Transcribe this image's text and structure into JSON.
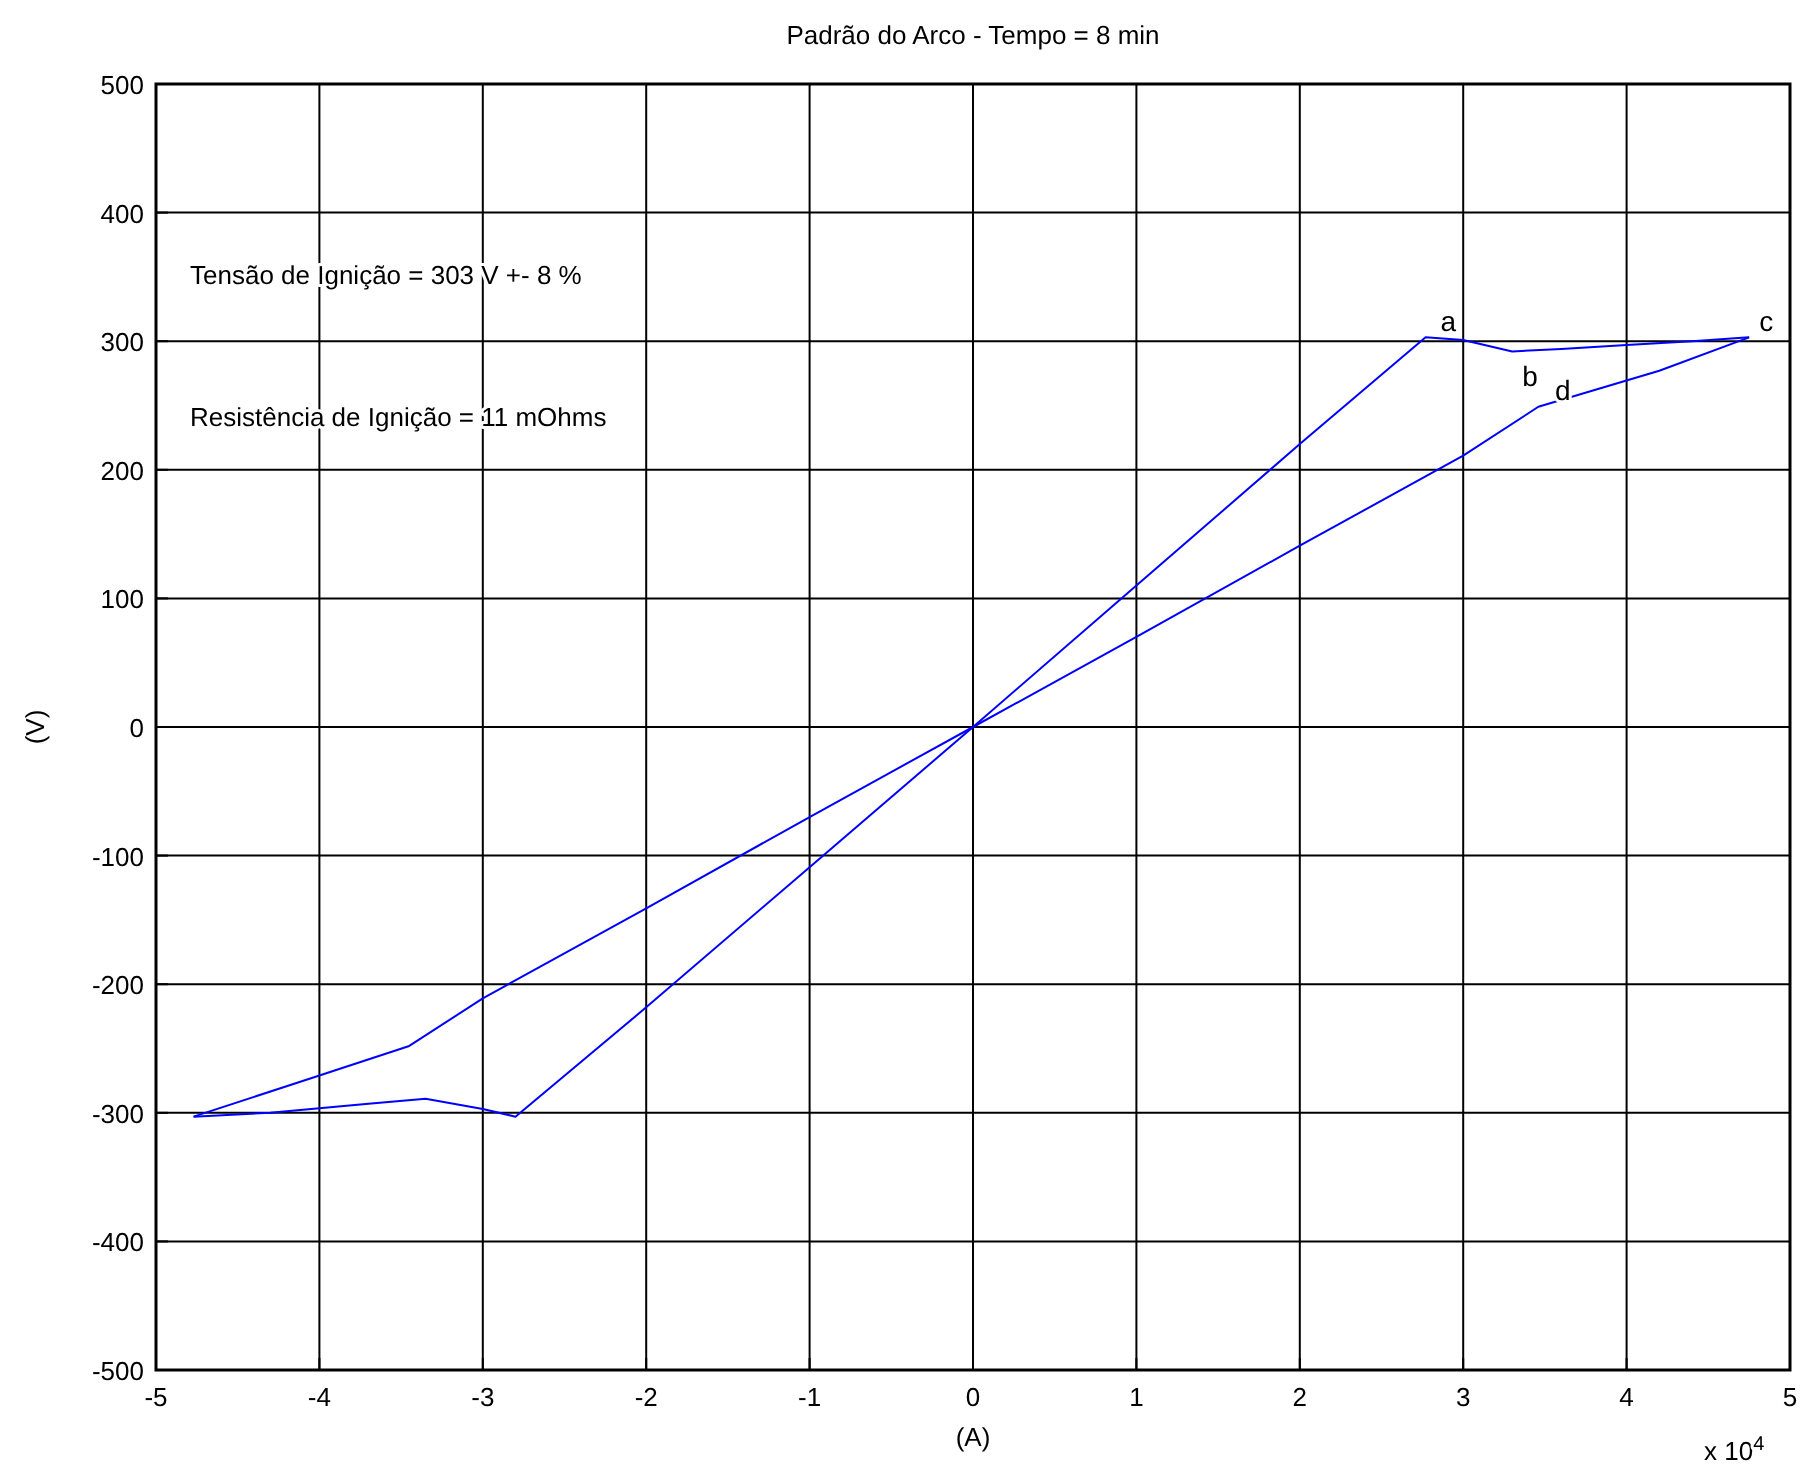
{
  "chart_data": {
    "type": "line",
    "title": "Padrão do Arco - Tempo =  8 min",
    "xlabel": "(A)",
    "ylabel": "(V)",
    "series": [
      {
        "color": "#0000ff",
        "x": [
          -4.77,
          -4.3,
          -3.7,
          -3.35,
          -3.0,
          -2.8,
          -2.0,
          -1.0,
          0,
          1,
          2,
          2.77,
          3.0,
          3.3,
          3.6,
          4.0,
          4.4,
          4.75
        ],
        "values": [
          -303,
          -300,
          -293,
          -289,
          -297,
          -303,
          -218,
          -109,
          0,
          110,
          220,
          303,
          301,
          292,
          294,
          297,
          300,
          303
        ]
      },
      {
        "color": "#0000ff",
        "x": [
          -4.77,
          -4.0,
          -3.45,
          -3.0,
          -2.0,
          -1.0,
          0,
          1.0,
          2.0,
          3.0,
          3.46,
          4.2,
          4.75
        ],
        "values": [
          -303,
          -271,
          -248,
          -211,
          -141,
          -70,
          0,
          70,
          141,
          211,
          249,
          277,
          303
        ]
      }
    ],
    "xlim": [
      -5,
      5
    ],
    "ylim": [
      -500,
      500
    ],
    "xticks": [
      -5,
      -4,
      -3,
      -2,
      -1,
      0,
      1,
      2,
      3,
      4,
      5
    ],
    "yticks": [
      -500,
      -400,
      -300,
      -200,
      -100,
      0,
      100,
      200,
      300,
      400,
      500
    ],
    "grid": true,
    "marker": "none",
    "line_style": "solid",
    "annotations": [
      "Tensão de Ignição = 303 V +-  8 %",
      "Resistência de Ignição = 11 mOhms",
      "x 10$^{4}$",
      {
        "text": "a",
        "x": 2.8,
        "y": 303
      },
      {
        "text": "b",
        "x": 3.3,
        "y": 290
      },
      {
        "text": "c",
        "x": 4.75,
        "y": 303
      },
      {
        "text": "d",
        "x": 3.5,
        "y": 250
      }
    ]
  }
}
